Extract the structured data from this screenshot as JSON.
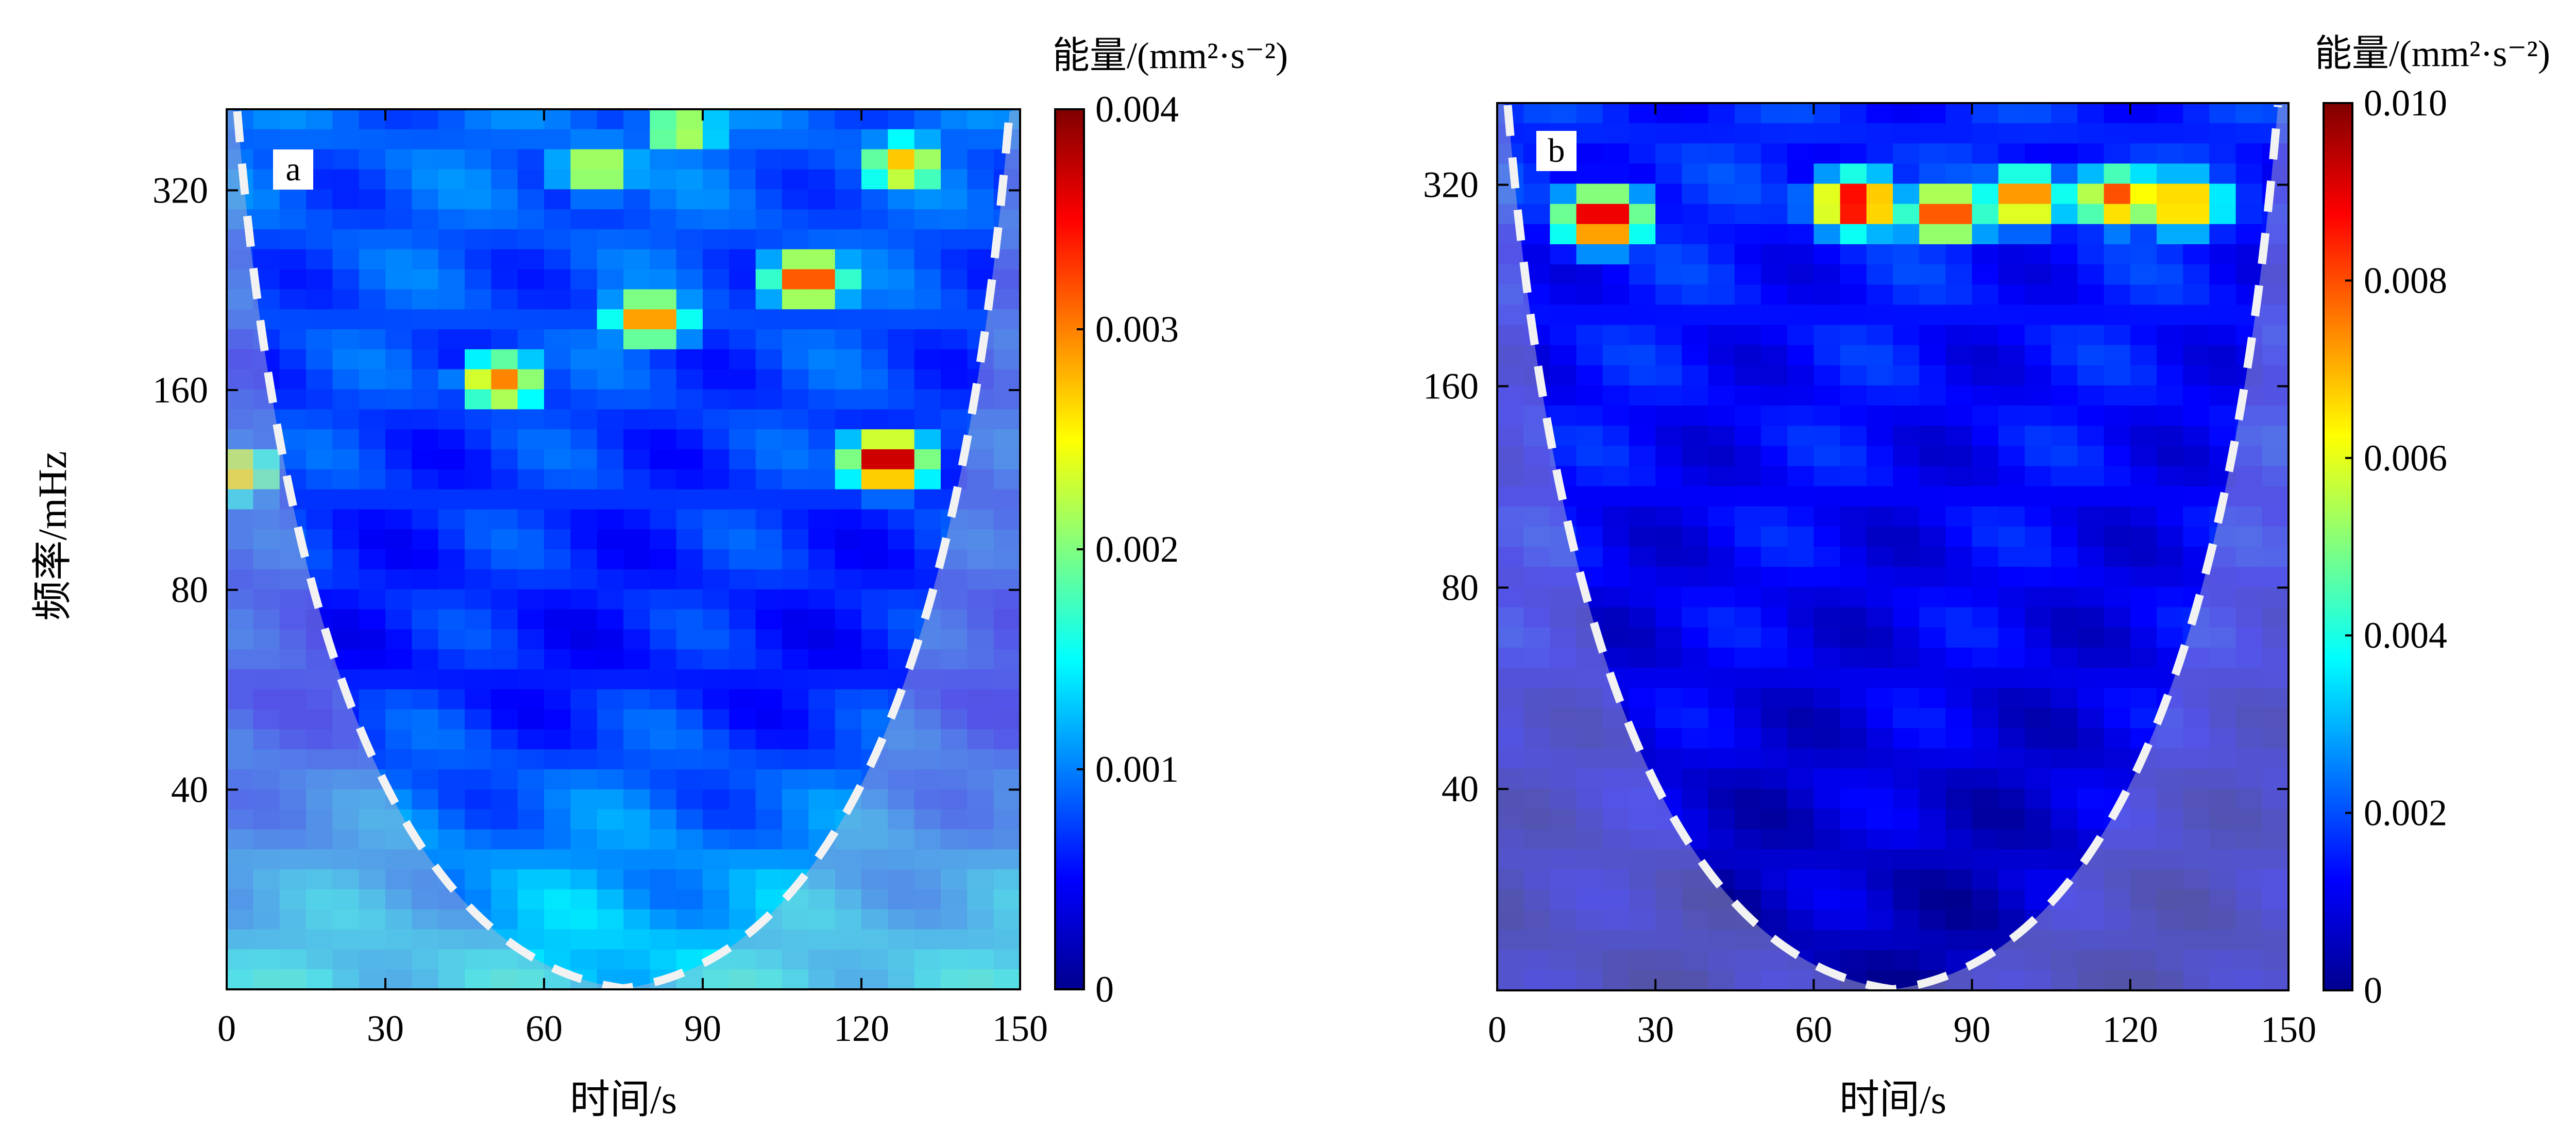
{
  "figure": {
    "ylabel": "频率/mHz",
    "xlabel": "时间/s"
  },
  "colors": {
    "jet": [
      "#00008f",
      "#0000ff",
      "#0080ff",
      "#00ffff",
      "#80ff80",
      "#ffff00",
      "#ff8000",
      "#ff0000",
      "#800000"
    ],
    "coi_line": "#f2f2f2",
    "coi_shade": "#b8b8cc"
  },
  "chart_data": [
    {
      "type": "heatmap",
      "panel_label": "a",
      "x_ticks": [
        "0",
        "30",
        "60",
        "90",
        "120",
        "150"
      ],
      "x_tick_values": [
        0,
        30,
        60,
        90,
        120,
        150
      ],
      "xlim": [
        0,
        150
      ],
      "y_ticks": [
        "40",
        "80",
        "160",
        "320"
      ],
      "y_tick_values": [
        40,
        80,
        160,
        320
      ],
      "ylim": [
        20,
        424
      ],
      "y_scale": "log2",
      "colorbar": {
        "title": "能量/(mm²·s⁻²)",
        "ticks": [
          "0",
          "0.001",
          "0.002",
          "0.003",
          "0.004"
        ],
        "tick_values": [
          0,
          0.001,
          0.002,
          0.003,
          0.004
        ],
        "range": [
          0,
          0.004
        ]
      },
      "cone_of_influence": {
        "apex_x": 75,
        "apex_y": 20,
        "edge_y": 424,
        "edge_x": [
          2,
          148
        ]
      },
      "hotspots": [
        {
          "x": 125,
          "y": 125,
          "value": 0.004
        },
        {
          "x": 110,
          "y": 235,
          "value": 0.0034
        },
        {
          "x": 80,
          "y": 205,
          "value": 0.0031
        },
        {
          "x": 52,
          "y": 165,
          "value": 0.003
        },
        {
          "x": 128,
          "y": 350,
          "value": 0.0028
        },
        {
          "x": 70,
          "y": 345,
          "value": 0.0025
        },
        {
          "x": 86,
          "y": 395,
          "value": 0.0024
        },
        {
          "x": 2,
          "y": 120,
          "value": 0.0027
        }
      ],
      "background": {
        "low_freq": 0.0014,
        "mid_freq": 0.0006,
        "high_freq": 0.0009
      }
    },
    {
      "type": "heatmap",
      "panel_label": "b",
      "x_ticks": [
        "0",
        "30",
        "60",
        "90",
        "120",
        "150"
      ],
      "x_tick_values": [
        0,
        30,
        60,
        90,
        120,
        150
      ],
      "xlim": [
        0,
        150
      ],
      "y_ticks": [
        "40",
        "80",
        "160",
        "320"
      ],
      "y_tick_values": [
        40,
        80,
        160,
        320
      ],
      "ylim": [
        20,
        424
      ],
      "y_scale": "log2",
      "colorbar": {
        "title": "能量/(mm²·s⁻²)",
        "ticks": [
          "0",
          "0.002",
          "0.004",
          "0.006",
          "0.008",
          "0.010"
        ],
        "tick_values": [
          0,
          0.002,
          0.004,
          0.006,
          0.008,
          0.01
        ],
        "range": [
          0,
          0.01
        ]
      },
      "cone_of_influence": {
        "apex_x": 75,
        "apex_y": 20,
        "edge_y": 424,
        "edge_x": [
          2,
          148
        ]
      },
      "hotspots": [
        {
          "x": 20,
          "y": 285,
          "value": 0.0098
        },
        {
          "x": 68,
          "y": 300,
          "value": 0.0095
        },
        {
          "x": 85,
          "y": 290,
          "value": 0.0085
        },
        {
          "x": 100,
          "y": 305,
          "value": 0.008
        },
        {
          "x": 118,
          "y": 305,
          "value": 0.0082
        },
        {
          "x": 130,
          "y": 300,
          "value": 0.0078
        }
      ],
      "background": {
        "low_freq": 0.0004,
        "mid_freq": 0.001,
        "high_freq": 0.0016
      }
    }
  ]
}
